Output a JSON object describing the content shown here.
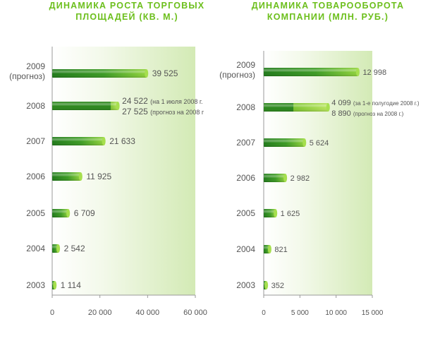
{
  "chart_data": [
    {
      "type": "bar",
      "orientation": "horizontal",
      "title": "ДИНАМИКА РОСТА ТОРГОВЫХ\nПЛОЩАДЕЙ (КВ. М.)",
      "categories": [
        "2003",
        "2004",
        "2005",
        "2006",
        "2007",
        "2008",
        "2009\n(прогноз)"
      ],
      "values": [
        1114,
        2542,
        6709,
        11925,
        21633,
        27525,
        39525
      ],
      "value_labels": [
        "1 114",
        "2 542",
        "6 709",
        "11 925",
        "21 633",
        "",
        "39 525"
      ],
      "secondary": {
        "category": "2008",
        "value": 24522
      },
      "annotations": [
        {
          "value": "24 522",
          "note": "(на 1 июля 2008 г."
        },
        {
          "value": "27 525",
          "note": "(прогноз на 2008 г"
        }
      ],
      "xlim": [
        0,
        60000
      ],
      "xticks": [
        0,
        20000,
        40000,
        60000
      ],
      "xtick_labels": [
        "0",
        "20 000",
        "40 000",
        "60 000"
      ],
      "colors": {
        "bar_dark": "#2e8b1f",
        "bar_light": "#8fd23a",
        "bar_secondary": "#5aae2b",
        "title": "#6cbf1c",
        "bg_light": "#f5faee",
        "bg_dark": "#d6ebbc"
      }
    },
    {
      "type": "bar",
      "orientation": "horizontal",
      "title": "ДИНАМИКА ТОВАРООБОРОТА\nКОМПАНИИ (МЛН. РУБ.)",
      "categories": [
        "2003",
        "2004",
        "2005",
        "2006",
        "2007",
        "2008",
        "2009\n(прогноз)"
      ],
      "values": [
        352,
        821,
        1625,
        2982,
        5624,
        8890,
        12998
      ],
      "value_labels": [
        "352",
        "821",
        "1 625",
        "2 982",
        "5 624",
        "",
        "12 998"
      ],
      "secondary": {
        "category": "2008",
        "value": 4099
      },
      "annotations": [
        {
          "value": "4 099",
          "note": "(за 1-е полугодие 2008 г.)"
        },
        {
          "value": "8 890",
          "note": "(прогноз на 2008 г.)"
        }
      ],
      "xlim": [
        0,
        15000
      ],
      "xticks": [
        0,
        5000,
        10000,
        15000
      ],
      "xtick_labels": [
        "0",
        "5 000",
        "10 000",
        "15 000"
      ],
      "colors": {
        "bar_dark": "#2e8b1f",
        "bar_light": "#8fd23a",
        "bar_secondary": "#5aae2b",
        "title": "#6cbf1c",
        "bg_light": "#f5faee",
        "bg_dark": "#d6ebbc"
      }
    }
  ]
}
